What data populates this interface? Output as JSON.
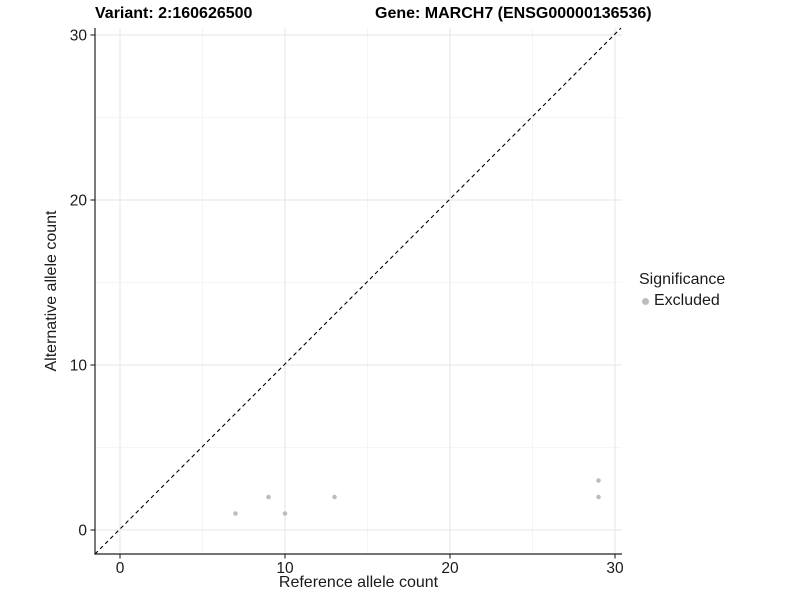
{
  "chart_data": {
    "type": "scatter",
    "titles": {
      "left": "Variant: 2:160626500",
      "right": "Gene: MARCH7 (ENSG00000136536)"
    },
    "xlabel": "Reference allele count",
    "ylabel": "Alternative allele count",
    "xlim": [
      -1.5,
      30.5
    ],
    "ylim": [
      -1.5,
      30.5
    ],
    "x_ticks": [
      0,
      10,
      20,
      30
    ],
    "y_ticks": [
      0,
      10,
      20,
      30
    ],
    "x_minor_ticks": [
      5,
      15,
      25
    ],
    "y_minor_ticks": [
      5,
      15,
      25
    ],
    "grid": "major+minor",
    "identity_line": {
      "show": true,
      "equation": "y = x",
      "style": "dashed",
      "color": "#000000"
    },
    "series": [
      {
        "name": "Excluded",
        "color": "#bdbdbd",
        "points": [
          [
            7,
            1
          ],
          [
            9,
            2
          ],
          [
            10,
            1
          ],
          [
            13,
            2
          ],
          [
            29,
            2
          ],
          [
            29,
            3
          ]
        ]
      }
    ],
    "legend": {
      "title": "Significance",
      "position": "right",
      "entries": [
        {
          "label": "Excluded",
          "color": "#bdbdbd",
          "marker": "circle"
        }
      ]
    },
    "colors": {
      "background": "#ffffff",
      "grid_major": "#e6e6e6",
      "grid_minor": "#f2f2f2",
      "axis_line": "#222222",
      "tick_text": "#1a1a1a",
      "point": "#bdbdbd"
    }
  }
}
